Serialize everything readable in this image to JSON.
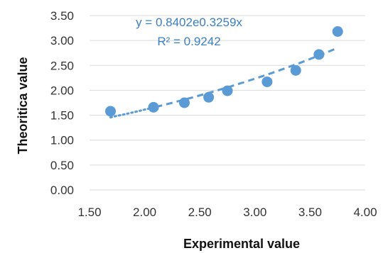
{
  "chart_data": {
    "type": "scatter",
    "xlabel": "Experimental value",
    "ylabel": "Theoritica value",
    "xlim": [
      1.5,
      4.0
    ],
    "ylim": [
      0.0,
      3.5
    ],
    "x_ticks": [
      "1.50",
      "2.00",
      "2.50",
      "3.00",
      "3.50",
      "4.00"
    ],
    "y_ticks": [
      "0.00",
      "0.50",
      "1.00",
      "1.50",
      "2.00",
      "2.50",
      "3.00",
      "3.50"
    ],
    "grid": "horizontal",
    "legend": "none",
    "series": [
      {
        "x": [
          1.69,
          2.08,
          2.36,
          2.58,
          2.75,
          3.11,
          3.37,
          3.58,
          3.75
        ],
        "y": [
          1.58,
          1.66,
          1.75,
          1.86,
          1.99,
          2.17,
          2.4,
          2.72,
          3.18
        ],
        "color": "#5b9bd5"
      }
    ],
    "trendline": {
      "type": "exponential",
      "a": 0.8402,
      "b": 0.3259,
      "x_range": [
        1.69,
        3.75
      ],
      "color": "#5b9bd5",
      "equation_label": "y = 0.8402e0.3259x",
      "r2_label": "R² = 0.9242"
    }
  }
}
